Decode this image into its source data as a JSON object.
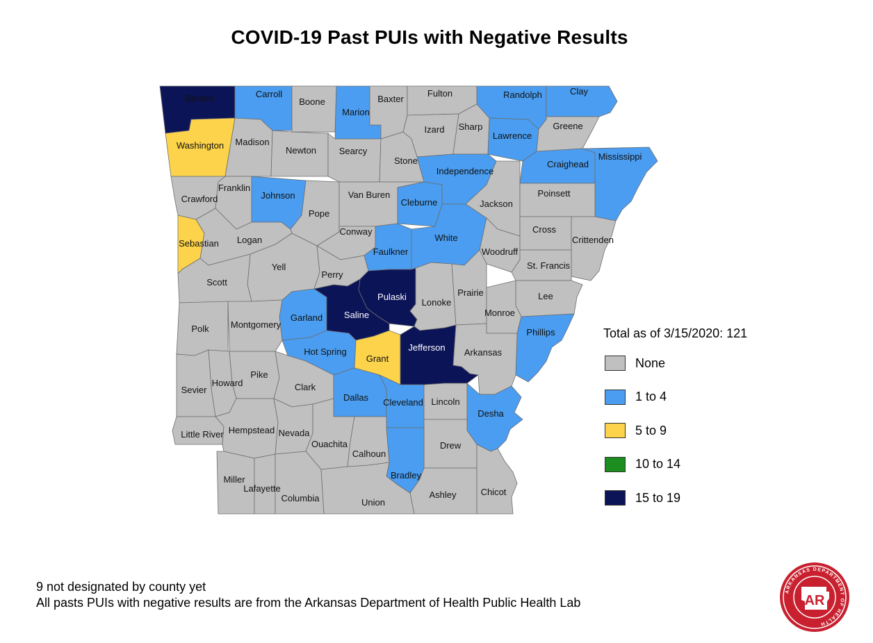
{
  "title": "COVID-19 Past PUIs with Negative Results",
  "legend": {
    "total": "Total as of 3/15/2020: 121",
    "items": [
      {
        "label": "None",
        "color": "#c0c0c0"
      },
      {
        "label": "1 to 4",
        "color": "#4a9df0"
      },
      {
        "label": "5 to 9",
        "color": "#fcd34a"
      },
      {
        "label": "10 to 14",
        "color": "#1b8e1f"
      },
      {
        "label": "15 to 19",
        "color": "#0c1458"
      }
    ]
  },
  "counties": [
    {
      "name": "Benton",
      "category": "15 to 19"
    },
    {
      "name": "Carroll",
      "category": "1 to 4"
    },
    {
      "name": "Boone",
      "category": "None"
    },
    {
      "name": "Marion",
      "category": "1 to 4"
    },
    {
      "name": "Baxter",
      "category": "None"
    },
    {
      "name": "Fulton",
      "category": "None"
    },
    {
      "name": "Randolph",
      "category": "1 to 4"
    },
    {
      "name": "Clay",
      "category": "1 to 4"
    },
    {
      "name": "Washington",
      "category": "5 to 9"
    },
    {
      "name": "Madison",
      "category": "None"
    },
    {
      "name": "Newton",
      "category": "None"
    },
    {
      "name": "Searcy",
      "category": "None"
    },
    {
      "name": "Izard",
      "category": "None"
    },
    {
      "name": "Sharp",
      "category": "None"
    },
    {
      "name": "Lawrence",
      "category": "1 to 4"
    },
    {
      "name": "Greene",
      "category": "None"
    },
    {
      "name": "Stone",
      "category": "None"
    },
    {
      "name": "Independence",
      "category": "1 to 4"
    },
    {
      "name": "Craighead",
      "category": "1 to 4"
    },
    {
      "name": "Mississippi",
      "category": "1 to 4"
    },
    {
      "name": "Crawford",
      "category": "None"
    },
    {
      "name": "Franklin",
      "category": "None"
    },
    {
      "name": "Johnson",
      "category": "1 to 4"
    },
    {
      "name": "Pope",
      "category": "None"
    },
    {
      "name": "Van Buren",
      "category": "None"
    },
    {
      "name": "Cleburne",
      "category": "1 to 4"
    },
    {
      "name": "Jackson",
      "category": "None"
    },
    {
      "name": "Poinsett",
      "category": "None"
    },
    {
      "name": "Sebastian",
      "category": "5 to 9"
    },
    {
      "name": "Logan",
      "category": "None"
    },
    {
      "name": "Conway",
      "category": "None"
    },
    {
      "name": "Faulkner",
      "category": "1 to 4"
    },
    {
      "name": "White",
      "category": "1 to 4"
    },
    {
      "name": "Woodruff",
      "category": "None"
    },
    {
      "name": "Cross",
      "category": "None"
    },
    {
      "name": "Crittenden",
      "category": "None"
    },
    {
      "name": "Yell",
      "category": "None"
    },
    {
      "name": "Perry",
      "category": "None"
    },
    {
      "name": "St. Francis",
      "category": "None"
    },
    {
      "name": "Scott",
      "category": "None"
    },
    {
      "name": "Pulaski",
      "category": "15 to 19"
    },
    {
      "name": "Lonoke",
      "category": "None"
    },
    {
      "name": "Prairie",
      "category": "None"
    },
    {
      "name": "Lee",
      "category": "None"
    },
    {
      "name": "Garland",
      "category": "1 to 4"
    },
    {
      "name": "Saline",
      "category": "15 to 19"
    },
    {
      "name": "Monroe",
      "category": "None"
    },
    {
      "name": "Polk",
      "category": "None"
    },
    {
      "name": "Montgomery",
      "category": "None"
    },
    {
      "name": "Phillips",
      "category": "1 to 4"
    },
    {
      "name": "Hot Spring",
      "category": "1 to 4"
    },
    {
      "name": "Grant",
      "category": "5 to 9"
    },
    {
      "name": "Jefferson",
      "category": "15 to 19"
    },
    {
      "name": "Arkansas",
      "category": "None"
    },
    {
      "name": "Pike",
      "category": "None"
    },
    {
      "name": "Howard",
      "category": "None"
    },
    {
      "name": "Sevier",
      "category": "None"
    },
    {
      "name": "Clark",
      "category": "None"
    },
    {
      "name": "Dallas",
      "category": "1 to 4"
    },
    {
      "name": "Cleveland",
      "category": "1 to 4"
    },
    {
      "name": "Lincoln",
      "category": "None"
    },
    {
      "name": "Desha",
      "category": "1 to 4"
    },
    {
      "name": "Little River",
      "category": "None"
    },
    {
      "name": "Hempstead",
      "category": "None"
    },
    {
      "name": "Nevada",
      "category": "None"
    },
    {
      "name": "Ouachita",
      "category": "None"
    },
    {
      "name": "Calhoun",
      "category": "None"
    },
    {
      "name": "Drew",
      "category": "None"
    },
    {
      "name": "Bradley",
      "category": "1 to 4"
    },
    {
      "name": "Miller",
      "category": "None"
    },
    {
      "name": "Lafayette",
      "category": "None"
    },
    {
      "name": "Columbia",
      "category": "None"
    },
    {
      "name": "Union",
      "category": "None"
    },
    {
      "name": "Ashley",
      "category": "None"
    },
    {
      "name": "Chicot",
      "category": "None"
    }
  ],
  "notes": [
    "9 not designated by county yet",
    "All pasts PUIs with negative results are from the Arkansas Department of Health Public Health Lab"
  ],
  "seal": {
    "ring_text": "ARKANSAS DEPARTMENT OF HEALTH",
    "center_text": "AR"
  }
}
